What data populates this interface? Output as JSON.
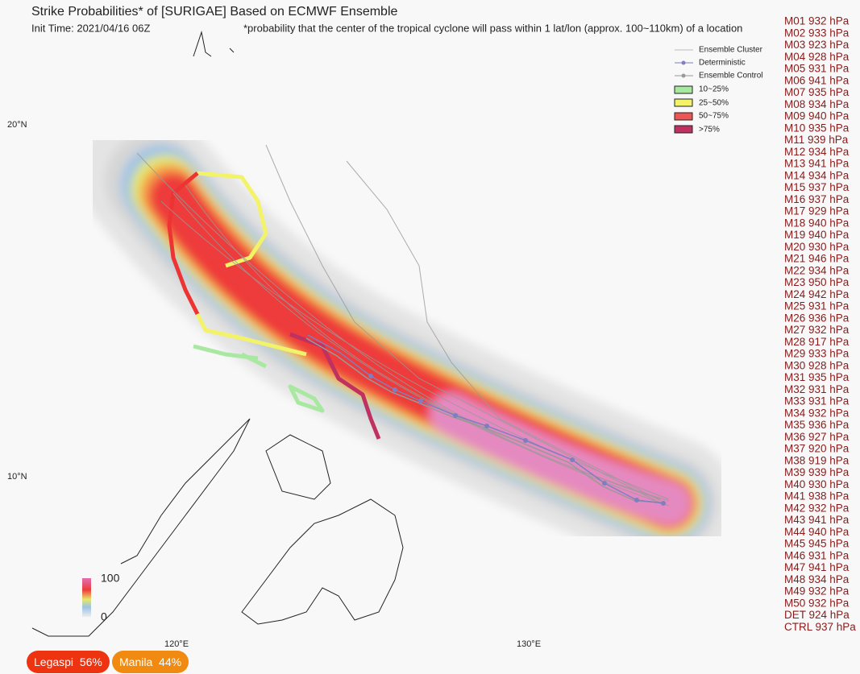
{
  "header": {
    "title": "Strike Probabilities* of [SURIGAE] Based on ECMWF Ensemble",
    "init_time": "Init Time: 2021/04/16 06Z",
    "footnote": "*probability that the center of the tropical cyclone will pass within 1 lat/lon (approx. 100~110km) of a location"
  },
  "legend": [
    "Ensemble Cluster",
    "Deterministic",
    "Ensemble Control",
    "10~25%",
    "25~50%",
    "50~75%",
    ">75%"
  ],
  "axes": {
    "lat": [
      "20°N",
      "10°N"
    ],
    "lon": [
      "120°E",
      "130°E"
    ]
  },
  "colorbar": {
    "max": "100",
    "min": "0"
  },
  "members": [
    "M01 932 hPa",
    "M02 933 hPa",
    "M03 923 hPa",
    "M04 928 hPa",
    "M05 931 hPa",
    "M06 941 hPa",
    "M07 935 hPa",
    "M08 934 hPa",
    "M09 940 hPa",
    "M10 935 hPa",
    "M11 939 hPa",
    "M12 934 hPa",
    "M13 941 hPa",
    "M14 934 hPa",
    "M15 937 hPa",
    "M16 937 hPa",
    "M17 929 hPa",
    "M18 940 hPa",
    "M19 940 hPa",
    "M20 930 hPa",
    "M21 946 hPa",
    "M22 934 hPa",
    "M23 950 hPa",
    "M24 942 hPa",
    "M25 931 hPa",
    "M26 936 hPa",
    "M27 932 hPa",
    "M28 917 hPa",
    "M29 933 hPa",
    "M30 928 hPa",
    "M31 935 hPa",
    "M32 931 hPa",
    "M33 931 hPa",
    "M34 932 hPa",
    "M35 936 hPa",
    "M36 927 hPa",
    "M37 920 hPa",
    "M38 919 hPa",
    "M39 939 hPa",
    "M40 930 hPa",
    "M41 938 hPa",
    "M42 932 hPa",
    "M43 941 hPa",
    "M44 940 hPa",
    "M45 945 hPa",
    "M46 931 hPa",
    "M47 941 hPa",
    "M48 934 hPa",
    "M49 932 hPa",
    "M50 932 hPa",
    "DET 924 hPa",
    "CTRL 937 hPa"
  ],
  "badges": [
    {
      "city": "Legaspi",
      "prob": "56%"
    },
    {
      "city": "Manila",
      "prob": "44%"
    }
  ]
}
